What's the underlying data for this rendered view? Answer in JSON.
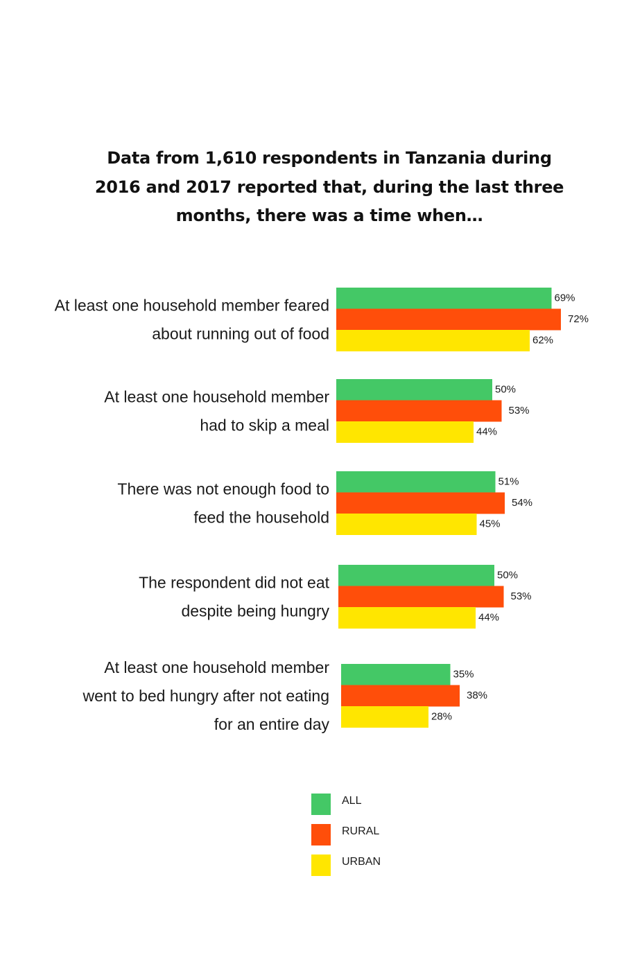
{
  "chart_data": {
    "type": "bar",
    "orientation": "horizontal",
    "title_lines": [
      "Data from 1,610 respondents in Tanzania during",
      "2016 and 2017  reported that, during the last three",
      "months, there was a time when…"
    ],
    "categories": [
      [
        "At least one household member feared",
        "about running out of food"
      ],
      [
        "At least one household member",
        "had to skip a meal"
      ],
      [
        "There was not enough food to",
        "feed the household"
      ],
      [
        "The respondent did not eat",
        "despite being hungry"
      ],
      [
        "At least one household member",
        "went to bed hungry after not eating",
        "for an entire day"
      ]
    ],
    "series": [
      {
        "name": "ALL",
        "color": "#44c866",
        "values": [
          69,
          50,
          51,
          50,
          35
        ],
        "labels": [
          "69%",
          "50%",
          "51%",
          "50%",
          "35%"
        ]
      },
      {
        "name": "RURAL",
        "color": "#ff4e0a",
        "values": [
          72,
          53,
          54,
          53,
          38
        ],
        "labels": [
          "72%",
          "53%",
          "54%",
          "53%",
          "38%"
        ]
      },
      {
        "name": "URBAN",
        "color": "#ffe600",
        "values": [
          62,
          44,
          45,
          44,
          28
        ],
        "labels": [
          "62%",
          "44%",
          "45%",
          "44%",
          "28%"
        ]
      }
    ],
    "unit": "%",
    "legend_position": "bottom-center",
    "grid": false
  }
}
